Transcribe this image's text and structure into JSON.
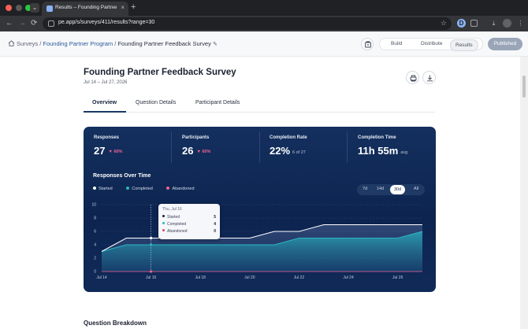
{
  "browser": {
    "tab_title": "Results – Founding Partner Fe",
    "tab_close": "×",
    "new_tab": "+",
    "url": "pe.app/s/surveys/411/results?range=30",
    "back": "←",
    "forward": "→",
    "reload": "⟳",
    "star": "☆",
    "profile_initial": "D"
  },
  "breadcrumb": {
    "root": "Surveys",
    "sep1": "/",
    "program": "Founding Partner Program",
    "sep2": "/",
    "current": "Founding Partner Feedback Survey",
    "edit_glyph": "✎"
  },
  "header": {
    "modes": [
      "Build",
      "Distribute",
      "Results"
    ],
    "status": "Published"
  },
  "survey": {
    "title": "Founding Partner Feedback Survey",
    "dates": "Jul 14 – Jul 27, 2026"
  },
  "tabs": [
    "Overview",
    "Question Details",
    "Participant Details"
  ],
  "stats": [
    {
      "label": "Responses",
      "value": "27",
      "delta": "▼ 60%"
    },
    {
      "label": "Participants",
      "value": "26",
      "delta": "▼ 60%"
    },
    {
      "label": "Completion Rate",
      "value": "22%",
      "sub": "6 of 27"
    },
    {
      "label": "Completion Time",
      "value": "11h 55m",
      "sub": "avg"
    }
  ],
  "chart_section": {
    "title": "Responses Over Time",
    "legend": [
      "Started",
      "Completed",
      "Abandoned"
    ],
    "ranges": [
      "7d",
      "14d",
      "30d",
      "All"
    ],
    "selected_range": "30d"
  },
  "tooltip": {
    "date": "Thu, Jul 16",
    "rows": [
      {
        "label": "Started",
        "value": "5"
      },
      {
        "label": "Completed",
        "value": "4"
      },
      {
        "label": "Abandoned",
        "value": "0"
      }
    ]
  },
  "colors": {
    "started": "#ffffff",
    "completed": "#2bb5c2",
    "abandoned": "#f06292",
    "card_bg": "#0d2450"
  },
  "chart_data": {
    "type": "area",
    "x": [
      "Jul 14",
      "Jul 15",
      "Jul 16",
      "Jul 17",
      "Jul 18",
      "Jul 19",
      "Jul 20",
      "Jul 21",
      "Jul 22",
      "Jul 23",
      "Jul 24",
      "Jul 25",
      "Jul 26",
      "Jul 27"
    ],
    "x_tick_labels": [
      "Jul 14",
      "Jul 16",
      "Jul 18",
      "Jul 20",
      "Jul 22",
      "Jul 24",
      "Jul 26"
    ],
    "y_ticks": [
      0,
      2,
      4,
      6,
      8,
      10
    ],
    "ylim": [
      0,
      10
    ],
    "grid": true,
    "legend_position": "top-left",
    "series": [
      {
        "name": "Started",
        "values": [
          3,
          5,
          5,
          5,
          5,
          5,
          5,
          6,
          6,
          7,
          7,
          7,
          7,
          7
        ]
      },
      {
        "name": "Completed",
        "values": [
          3,
          4,
          4,
          4,
          4,
          4,
          4,
          4,
          5,
          5,
          5,
          5,
          5,
          6
        ]
      },
      {
        "name": "Abandoned",
        "values": [
          0,
          0,
          0,
          0,
          0,
          0,
          0,
          0,
          0,
          0,
          0,
          0,
          0,
          0
        ]
      }
    ],
    "highlight_x": "Jul 16"
  },
  "footer_section": {
    "title": "Question Breakdown"
  }
}
